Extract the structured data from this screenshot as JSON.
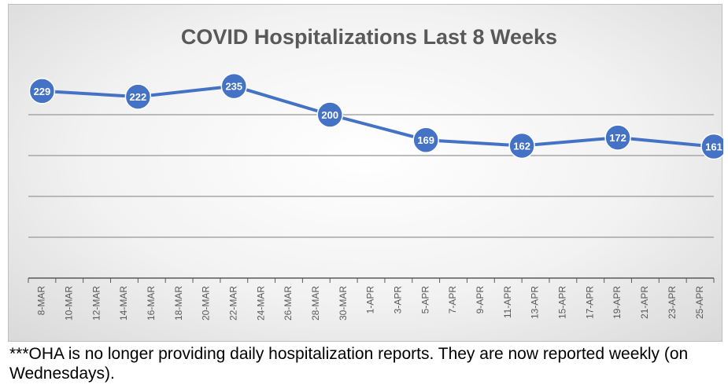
{
  "chart_data": {
    "type": "line",
    "title": "COVID Hospitalizations Last 8 Weeks",
    "xlabel": "",
    "ylabel": "",
    "grid": true,
    "categories": [
      "8-MAR",
      "10-MAR",
      "12-MAR",
      "14-MAR",
      "16-MAR",
      "18-MAR",
      "20-MAR",
      "22-MAR",
      "24-MAR",
      "26-MAR",
      "28-MAR",
      "30-MAR",
      "1-APR",
      "3-APR",
      "5-APR",
      "7-APR",
      "9-APR",
      "11-APR",
      "13-APR",
      "15-APR",
      "17-APR",
      "19-APR",
      "21-APR",
      "23-APR",
      "25-APR"
    ],
    "points": [
      {
        "x": "8-MAR",
        "y": 229
      },
      {
        "x": "15-MAR",
        "y": 222
      },
      {
        "x": "22-MAR",
        "y": 235
      },
      {
        "x": "29-MAR",
        "y": 200
      },
      {
        "x": "5-APR",
        "y": 169
      },
      {
        "x": "12-APR",
        "y": 162
      },
      {
        "x": "19-APR",
        "y": 172
      },
      {
        "x": "26-APR",
        "y": 161
      }
    ],
    "ylim": [
      0,
      250
    ],
    "gridlines": [
      50,
      100,
      150,
      200
    ],
    "line_color": "#4472c4",
    "marker_color": "#4472c4",
    "label_color": "#ffffff"
  },
  "footnote": "***OHA is no longer providing daily hospitalization reports.  They are now reported weekly (on Wednesdays)."
}
